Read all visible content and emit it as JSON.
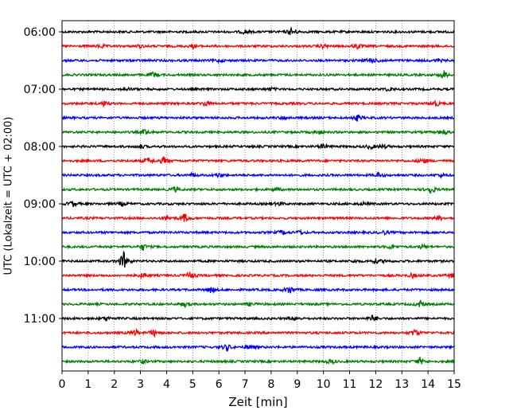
{
  "chart_data": {
    "type": "line",
    "title": "",
    "xlabel": "Zeit  [min]",
    "ylabel": "UTC (Lokalzeit = UTC + 02:00)",
    "xlim": [
      0,
      15
    ],
    "x_ticks": [
      0,
      1,
      2,
      3,
      4,
      5,
      6,
      7,
      8,
      9,
      10,
      11,
      12,
      13,
      14,
      15
    ],
    "x_tick_labels": [
      "0",
      "1",
      "2",
      "3",
      "4",
      "5",
      "6",
      "7",
      "8",
      "9",
      "10",
      "11",
      "12",
      "13",
      "14",
      "15"
    ],
    "y_tick_labels": [
      "06:00",
      "07:00",
      "08:00",
      "09:00",
      "10:00",
      "11:00"
    ],
    "grid": "vertical dotted",
    "trace_colors": [
      "#000000",
      "#ff0000",
      "#0000ff",
      "#008000"
    ],
    "traces": [
      {
        "start": "06:00",
        "events": [
          [
            7.0,
            0.4
          ],
          [
            8.8,
            1.0
          ]
        ]
      },
      {
        "start": "06:15",
        "events": [
          [
            1.5,
            0.4
          ],
          [
            3.0,
            0.3
          ],
          [
            5.0,
            0.4
          ],
          [
            10.0,
            0.4
          ],
          [
            11.3,
            0.5
          ]
        ]
      },
      {
        "start": "06:30",
        "events": [
          [
            6.0,
            0.3
          ],
          [
            11.8,
            0.6
          ],
          [
            12.2,
            0.3
          ],
          [
            14.4,
            0.3
          ]
        ]
      },
      {
        "start": "06:45",
        "events": [
          [
            3.5,
            0.6
          ],
          [
            14.6,
            0.9
          ]
        ]
      },
      {
        "start": "07:00",
        "events": [
          [
            2.5,
            0.3
          ],
          [
            8.0,
            0.3
          ],
          [
            12.5,
            0.4
          ]
        ]
      },
      {
        "start": "07:15",
        "events": [
          [
            1.6,
            0.5
          ],
          [
            5.5,
            0.6
          ],
          [
            14.3,
            0.6
          ]
        ]
      },
      {
        "start": "07:30",
        "events": [
          [
            8.5,
            0.3
          ],
          [
            11.3,
            0.6
          ]
        ]
      },
      {
        "start": "07:45",
        "events": [
          [
            3.2,
            0.6
          ],
          [
            9.8,
            0.4
          ],
          [
            14.6,
            0.6
          ]
        ]
      },
      {
        "start": "08:00",
        "events": [
          [
            3.0,
            0.4
          ],
          [
            10.0,
            0.5
          ],
          [
            11.8,
            0.5
          ],
          [
            12.3,
            0.4
          ]
        ]
      },
      {
        "start": "08:15",
        "events": [
          [
            3.3,
            0.6
          ],
          [
            3.9,
            0.8
          ],
          [
            13.8,
            0.6
          ]
        ]
      },
      {
        "start": "08:30",
        "events": [
          [
            5.0,
            0.4
          ],
          [
            6.0,
            0.4
          ],
          [
            12.1,
            0.5
          ],
          [
            14.5,
            0.3
          ]
        ]
      },
      {
        "start": "08:45",
        "events": [
          [
            4.3,
            0.5
          ],
          [
            8.2,
            0.3
          ],
          [
            14.1,
            0.9
          ]
        ]
      },
      {
        "start": "09:00",
        "events": [
          [
            0.4,
            0.6
          ],
          [
            2.3,
            0.4
          ],
          [
            8.3,
            0.4
          ],
          [
            11.5,
            0.3
          ]
        ]
      },
      {
        "start": "09:15",
        "events": [
          [
            4.0,
            0.6
          ],
          [
            4.7,
            1.0
          ],
          [
            14.4,
            0.5
          ]
        ]
      },
      {
        "start": "09:30",
        "events": [
          [
            8.4,
            0.5
          ],
          [
            9.1,
            0.4
          ],
          [
            12.3,
            0.4
          ]
        ]
      },
      {
        "start": "09:45",
        "events": [
          [
            3.1,
            0.7
          ],
          [
            12.6,
            0.5
          ],
          [
            13.8,
            0.5
          ]
        ]
      },
      {
        "start": "10:00",
        "events": [
          [
            2.35,
            2.0
          ],
          [
            11.2,
            0.3
          ],
          [
            12.0,
            0.4
          ],
          [
            12.4,
            0.3
          ]
        ]
      },
      {
        "start": "10:15",
        "events": [
          [
            3.1,
            0.5
          ],
          [
            4.9,
            0.8
          ],
          [
            13.4,
            0.4
          ],
          [
            14.9,
            0.4
          ]
        ]
      },
      {
        "start": "10:30",
        "events": [
          [
            5.7,
            0.7
          ],
          [
            8.7,
            0.9
          ]
        ]
      },
      {
        "start": "10:45",
        "events": [
          [
            4.7,
            0.5
          ],
          [
            7.2,
            0.3
          ],
          [
            13.7,
            0.7
          ]
        ]
      },
      {
        "start": "11:00",
        "events": [
          [
            1.7,
            0.4
          ],
          [
            8.9,
            0.4
          ],
          [
            11.9,
            0.7
          ]
        ]
      },
      {
        "start": "11:15",
        "events": [
          [
            2.8,
            0.7
          ],
          [
            3.5,
            0.7
          ],
          [
            13.5,
            0.8
          ]
        ]
      },
      {
        "start": "11:30",
        "events": [
          [
            6.3,
            0.7
          ],
          [
            7.2,
            0.5
          ]
        ]
      },
      {
        "start": "11:45",
        "events": [
          [
            3.1,
            0.4
          ],
          [
            10.3,
            0.5
          ],
          [
            13.7,
            0.7
          ]
        ]
      }
    ]
  }
}
